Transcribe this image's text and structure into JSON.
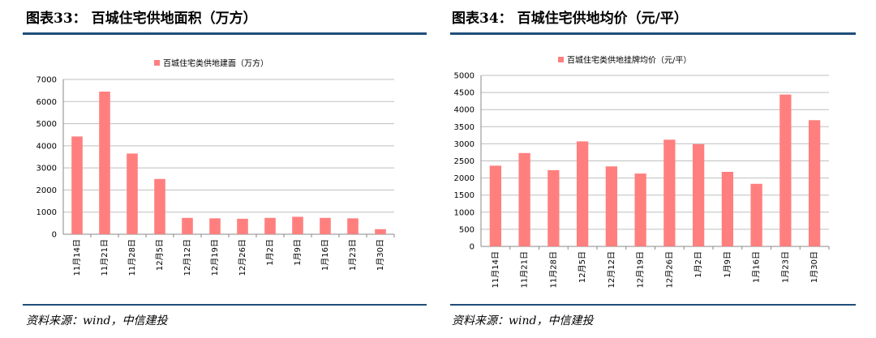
{
  "charts": [
    {
      "figure_title": "图表33：  百城住宅供地面积（万方）",
      "source": "资料来源：wind，中信建投",
      "chart_data": {
        "type": "bar",
        "title": "",
        "xlabel": "",
        "ylabel": "",
        "categories": [
          "11月14日",
          "11月21日",
          "11月28日",
          "12月5日",
          "12月12日",
          "12月19日",
          "12月26日",
          "1月2日",
          "1月9日",
          "1月16日",
          "1月23日",
          "1月30日"
        ],
        "series": [
          {
            "name": "百城住宅类供地建面（万方）",
            "values": [
              4420,
              6450,
              3650,
              2500,
              740,
              720,
              700,
              740,
              790,
              740,
              720,
              230
            ]
          }
        ],
        "ylim": [
          0,
          7000
        ],
        "yticks": [
          0,
          1000,
          2000,
          3000,
          4000,
          5000,
          6000,
          7000
        ],
        "grid": true,
        "legend": "top-center",
        "bar_color": "#ff7f7f"
      }
    },
    {
      "figure_title": "图表34：  百城住宅供地均价（元/平）",
      "source": "资料来源：wind，中信建投",
      "chart_data": {
        "type": "bar",
        "title": "",
        "xlabel": "",
        "ylabel": "",
        "categories": [
          "11月14日",
          "11月21日",
          "11月28日",
          "12月5日",
          "12月12日",
          "12月19日",
          "12月26日",
          "1月2日",
          "1月9日",
          "1月16日",
          "1月23日",
          "1月30日"
        ],
        "series": [
          {
            "name": "百城住宅类供地挂牌均价（元/平）",
            "values": [
              2360,
              2730,
              2230,
              3070,
              2340,
              2130,
              3120,
              2990,
              2180,
              1830,
              4440,
              3690
            ]
          }
        ],
        "ylim": [
          0,
          5000
        ],
        "yticks": [
          0,
          500,
          1000,
          1500,
          2000,
          2500,
          3000,
          3500,
          4000,
          4500,
          5000
        ],
        "grid": true,
        "legend": "top-center",
        "bar_color": "#ff7f7f"
      }
    }
  ]
}
